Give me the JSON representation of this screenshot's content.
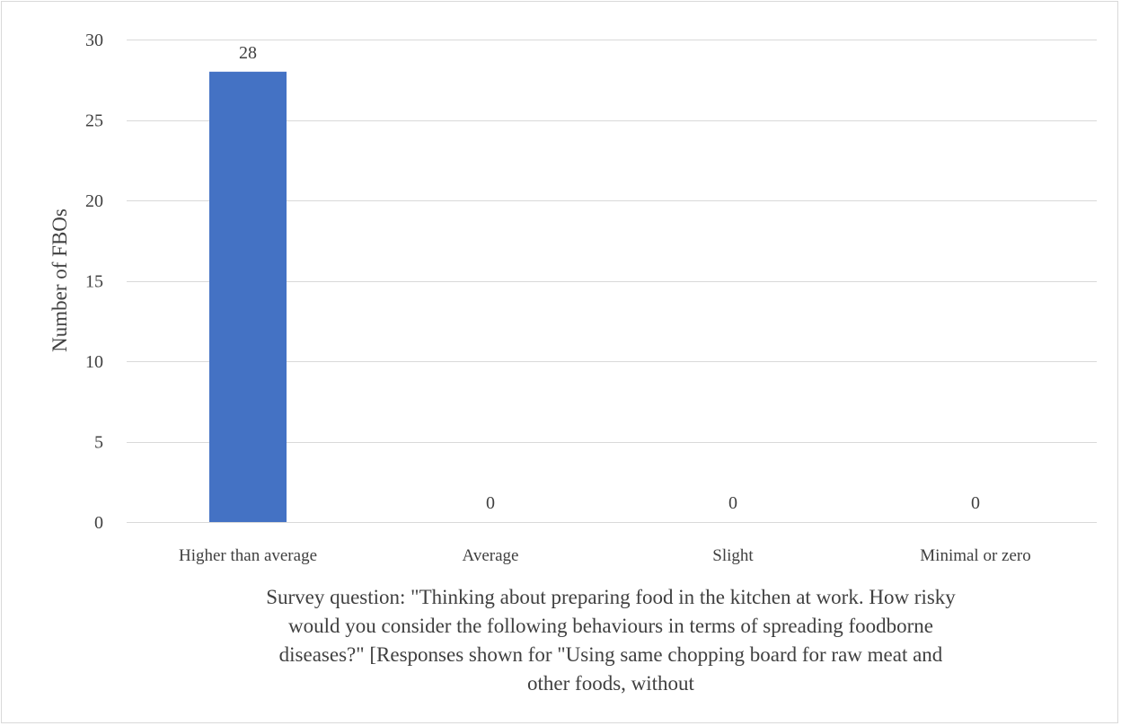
{
  "chart_data": {
    "type": "bar",
    "categories": [
      "Higher than average",
      "Average",
      "Slight",
      "Minimal or zero"
    ],
    "values": [
      28,
      0,
      0,
      0
    ],
    "data_labels": [
      "28",
      "0",
      "0",
      "0"
    ],
    "title": "",
    "xlabel_lines": [
      "Survey question: \"Thinking about preparing food in the kitchen at work. How risky",
      "would you consider the following behaviours in terms of spreading foodborne",
      "diseases?\" [Responses shown for \"Using same chopping board for raw meat and",
      "other foods, without"
    ],
    "ylabel": "Number of FBOs",
    "ylim": [
      0,
      30
    ],
    "yticks": [
      0,
      5,
      10,
      15,
      20,
      25,
      30
    ],
    "ytick_labels": [
      "0",
      "5",
      "10",
      "15",
      "20",
      "25",
      "30"
    ],
    "grid": true,
    "legend": "none",
    "bar_color": "#4472c4"
  }
}
